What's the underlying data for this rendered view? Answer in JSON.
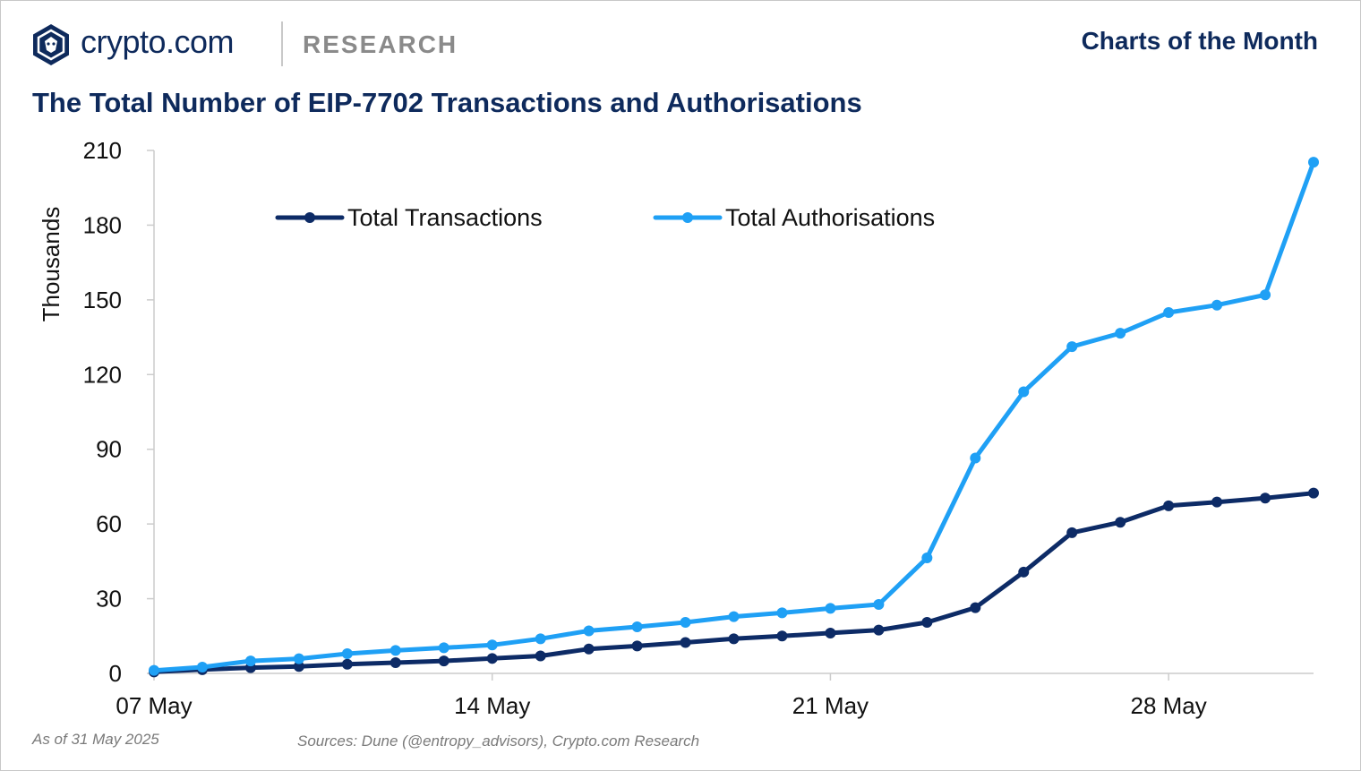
{
  "header": {
    "brand": "crypto.com",
    "section": "RESEARCH",
    "series_title": "Charts of the Month"
  },
  "colors": {
    "navy": "#0e2a5c",
    "transactions": "#0d2b66",
    "authorisations": "#1fa0f5",
    "axis": "#cccccc"
  },
  "icons": {
    "logo": "crypto-com-lion-shield-icon"
  },
  "chart_data": {
    "type": "line",
    "title": "The Total Number of EIP-7702 Transactions and Authorisations",
    "ylabel": "Thousands",
    "xlabel": "",
    "ylim": [
      0,
      210
    ],
    "yticks": [
      "0",
      "30",
      "60",
      "90",
      "120",
      "150",
      "180",
      "210"
    ],
    "xtick_labels": [
      "07 May",
      "14 May",
      "21 May",
      "28 May"
    ],
    "x": [
      "07 May",
      "08 May",
      "09 May",
      "10 May",
      "11 May",
      "12 May",
      "13 May",
      "14 May",
      "15 May",
      "16 May",
      "17 May",
      "18 May",
      "19 May",
      "20 May",
      "21 May",
      "22 May",
      "23 May",
      "24 May",
      "25 May",
      "26 May",
      "27 May",
      "28 May",
      "29 May",
      "30 May",
      "31 May"
    ],
    "grid": false,
    "legend": "top-left",
    "series": [
      {
        "name": "Total Transactions",
        "values": [
          0.6,
          1.5,
          2.3,
          2.8,
          3.7,
          4.3,
          5.0,
          6.0,
          7.0,
          9.8,
          11.0,
          12.4,
          13.9,
          15.0,
          16.2,
          17.4,
          20.5,
          26.4,
          40.7,
          56.5,
          60.7,
          67.3,
          68.8,
          70.4,
          72.4
        ]
      },
      {
        "name": "Total Authorisations",
        "values": [
          1.2,
          2.5,
          5.0,
          5.9,
          7.9,
          9.2,
          10.3,
          11.4,
          13.9,
          17.1,
          18.7,
          20.5,
          22.8,
          24.3,
          26.1,
          27.7,
          46.4,
          86.5,
          113.1,
          131.2,
          136.6,
          144.9,
          147.9,
          152.0,
          205.3
        ]
      }
    ]
  },
  "footer": {
    "as_of": "As of 31 May 2025",
    "sources": "Sources: Dune (@entropy_advisors), Crypto.com Research"
  }
}
